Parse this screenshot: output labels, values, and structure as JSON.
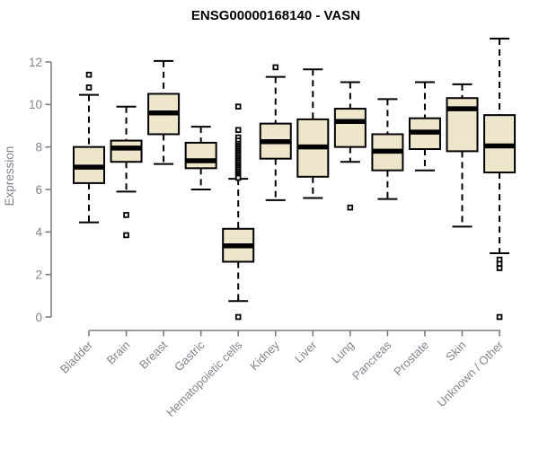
{
  "chart_data": {
    "type": "boxplot",
    "title": "ENSG00000168140 - VASN",
    "ylabel": "Expression",
    "xlabel": "",
    "ylim": [
      0,
      13.2
    ],
    "yticks": [
      0,
      2,
      4,
      6,
      8,
      10,
      12
    ],
    "grid": false,
    "legend": "none",
    "categories": [
      "Bladder",
      "Brain",
      "Breast",
      "Gastric",
      "Hematopoietic cells",
      "Kidney",
      "Liver",
      "Lung",
      "Pancreas",
      "Prostate",
      "Skin",
      "Unknown / Other"
    ],
    "boxes": [
      {
        "category": "Bladder",
        "whisker_low": 4.45,
        "q1": 6.3,
        "median": 7.05,
        "q3": 8.0,
        "whisker_high": 10.45,
        "outliers": [
          10.8,
          11.4
        ]
      },
      {
        "category": "Brain",
        "whisker_low": 5.9,
        "q1": 7.3,
        "median": 7.95,
        "q3": 8.3,
        "whisker_high": 9.9,
        "outliers": [
          4.8,
          3.85
        ]
      },
      {
        "category": "Breast",
        "whisker_low": 7.2,
        "q1": 8.6,
        "median": 9.6,
        "q3": 10.5,
        "whisker_high": 12.05,
        "outliers": []
      },
      {
        "category": "Gastric",
        "whisker_low": 6.0,
        "q1": 7.0,
        "median": 7.35,
        "q3": 8.2,
        "whisker_high": 8.95,
        "outliers": []
      },
      {
        "category": "Hematopoietic cells",
        "whisker_low": 0.75,
        "q1": 2.6,
        "median": 3.35,
        "q3": 4.15,
        "whisker_high": 6.5,
        "outliers": [
          9.9,
          8.8,
          8.45,
          8.3,
          8.15,
          8.06,
          7.98,
          7.9,
          7.82,
          7.74,
          7.66,
          7.58,
          7.5,
          7.42,
          7.34,
          7.26,
          7.18,
          7.1,
          7.02,
          6.94,
          6.86,
          6.78,
          6.7,
          6.62,
          6.55,
          0.0
        ]
      },
      {
        "category": "Kidney",
        "whisker_low": 5.5,
        "q1": 7.45,
        "median": 8.25,
        "q3": 9.1,
        "whisker_high": 11.3,
        "outliers": [
          11.75
        ]
      },
      {
        "category": "Liver",
        "whisker_low": 5.6,
        "q1": 6.6,
        "median": 8.0,
        "q3": 9.3,
        "whisker_high": 11.65,
        "outliers": []
      },
      {
        "category": "Lung",
        "whisker_low": 7.3,
        "q1": 8.0,
        "median": 9.2,
        "q3": 9.8,
        "whisker_high": 11.05,
        "outliers": [
          5.15
        ]
      },
      {
        "category": "Pancreas",
        "whisker_low": 5.55,
        "q1": 6.9,
        "median": 7.8,
        "q3": 8.6,
        "whisker_high": 10.25,
        "outliers": []
      },
      {
        "category": "Prostate",
        "whisker_low": 6.9,
        "q1": 7.9,
        "median": 8.7,
        "q3": 9.35,
        "whisker_high": 11.05,
        "outliers": []
      },
      {
        "category": "Skin",
        "whisker_low": 4.25,
        "q1": 7.8,
        "median": 9.8,
        "q3": 10.3,
        "whisker_high": 10.95,
        "outliers": []
      },
      {
        "category": "Unknown / Other",
        "whisker_low": 3.0,
        "q1": 6.8,
        "median": 8.05,
        "q3": 9.5,
        "whisker_high": 13.1,
        "outliers": [
          2.7,
          2.5,
          2.3,
          0.0
        ]
      }
    ],
    "colors": {
      "box_fill": "#EDE6CB",
      "box_border": "#000000",
      "median": "#000000",
      "whisker": "#000000",
      "outlier_stroke": "#000000",
      "outlier_fill": "#FFFFFF",
      "axis_line": "#7E7E7E",
      "tick_label": "#84848C",
      "title": "#000000",
      "background": "#FFFFFF"
    }
  }
}
